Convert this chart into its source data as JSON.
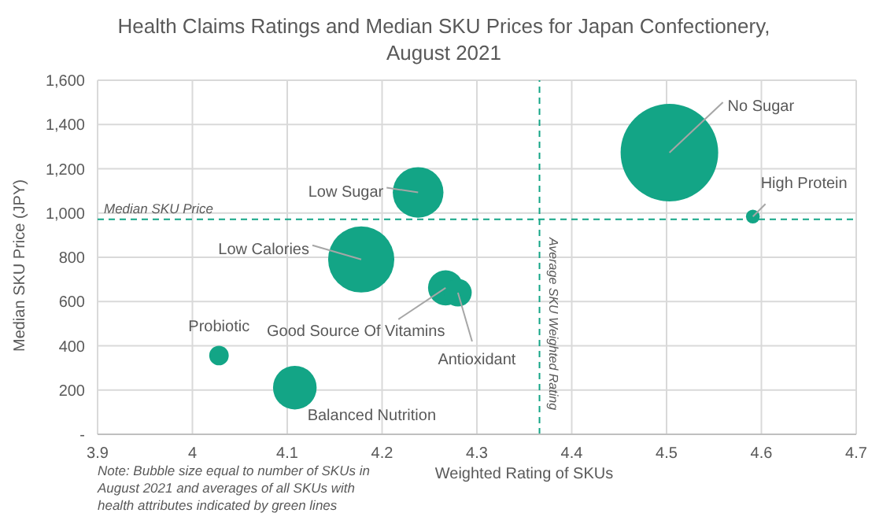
{
  "chart_data": {
    "type": "bubble",
    "title": "Health Claims Ratings and Median SKU Prices for Japan Confectionery, August 2021",
    "xlabel": "Weighted Rating of SKUs",
    "ylabel": "Median SKU Price (JPY)",
    "x": [
      4.503,
      4.591,
      4.238,
      4.178,
      4.267,
      4.28,
      4.028,
      4.108
    ],
    "series": [
      {
        "color": "#13a586",
        "values": [
          1273,
          984,
          1093,
          790,
          662,
          640,
          356,
          211
        ],
        "sizes": [
          1,
          0.02,
          0.27,
          0.46,
          0.13,
          0.08,
          0.04,
          0.2
        ]
      }
    ],
    "xlim": [
      3.9,
      4.7
    ],
    "xticks": [
      3.9,
      4,
      4.1,
      4.2,
      4.3,
      4.4,
      4.5,
      4.6,
      4.7
    ],
    "ylim": [
      0,
      1600
    ],
    "yticks": [
      {
        "value": 0,
        "label": "-"
      },
      {
        "value": 200,
        "label": "200"
      },
      {
        "value": 400,
        "label": "400"
      },
      {
        "value": 600,
        "label": "600"
      },
      {
        "value": 800,
        "label": "800"
      },
      {
        "value": 1000,
        "label": "1,000"
      },
      {
        "value": 1200,
        "label": "1,200"
      },
      {
        "value": 1400,
        "label": "1,400"
      },
      {
        "value": 1600,
        "label": "1,600"
      }
    ],
    "grid": true,
    "ref_lines": [
      {
        "axis": "y",
        "value": 972,
        "label": "Median SKU Price",
        "color": "#13a586",
        "line_style": "dashed"
      },
      {
        "axis": "x",
        "value": 4.366,
        "label": "Average SKU Weighted Rating",
        "color": "#13a586",
        "line_style": "dashed"
      }
    ],
    "annotations": [
      {
        "text": "No Sugar",
        "x": 4.503,
        "y": 1273
      },
      {
        "text": "High Protein",
        "x": 4.591,
        "y": 984
      },
      {
        "text": "Low Sugar",
        "x": 4.238,
        "y": 1093
      },
      {
        "text": "Low Calories",
        "x": 4.178,
        "y": 790
      },
      {
        "text": "Good Source Of Vitamins",
        "x": 4.267,
        "y": 662
      },
      {
        "text": "Antioxidant",
        "x": 4.28,
        "y": 640
      },
      {
        "text": "Probiotic",
        "x": 4.028,
        "y": 356
      },
      {
        "text": "Balanced Nutrition",
        "x": 4.108,
        "y": 211
      },
      "Note: Bubble size equal to number of SKUs in August 2021 and averages of all SKUs with health attributes indicated by green lines"
    ]
  }
}
